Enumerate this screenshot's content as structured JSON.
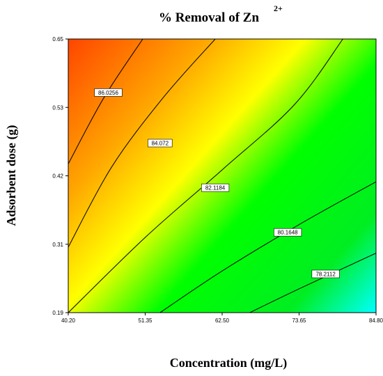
{
  "chart_data": {
    "type": "heatmap",
    "subtype": "contour",
    "title": "% Removal of Zn",
    "title_superscript": "2+",
    "xlabel": "Concentration (mg/L)",
    "ylabel": "Adsorbent dose (g)",
    "xlim": [
      40.2,
      84.8
    ],
    "ylim": [
      0.19,
      0.65
    ],
    "x_ticks": [
      "40.20",
      "51.35",
      "62.50",
      "73.65",
      "84.80"
    ],
    "y_ticks": [
      "0.19",
      "0.31",
      "0.42",
      "0.53",
      "0.65"
    ],
    "z_range": [
      76.2,
      88.1
    ],
    "colormap": [
      "#00ffff",
      "#00ff00",
      "#ffff00",
      "#ffa500",
      "#ff4500"
    ],
    "contours": [
      {
        "level": 86.0256,
        "label": "86.0256",
        "points": [
          [
            40.2,
            0.44
          ],
          [
            45.3,
            0.55
          ],
          [
            51.0,
            0.65
          ]
        ]
      },
      {
        "level": 84.072,
        "label": "84.072",
        "points": [
          [
            40.2,
            0.3
          ],
          [
            46.5,
            0.435
          ],
          [
            54.0,
            0.552
          ],
          [
            61.5,
            0.65
          ]
        ]
      },
      {
        "level": 82.1184,
        "label": "82.1184",
        "points": [
          [
            40.2,
            0.19
          ],
          [
            51.5,
            0.318
          ],
          [
            62.5,
            0.43
          ],
          [
            73.0,
            0.54
          ],
          [
            80.0,
            0.65
          ]
        ]
      },
      {
        "level": 80.1648,
        "label": "80.1648",
        "points": [
          [
            53.5,
            0.19
          ],
          [
            62.5,
            0.26
          ],
          [
            73.65,
            0.338
          ],
          [
            84.8,
            0.41
          ]
        ]
      },
      {
        "level": 78.2112,
        "label": "78.2112",
        "points": [
          [
            66.5,
            0.19
          ],
          [
            73.65,
            0.23
          ],
          [
            84.8,
            0.29
          ]
        ]
      }
    ],
    "contour_labels": [
      {
        "text": "86.0256",
        "x": 46.0,
        "y": 0.56
      },
      {
        "text": "84.072",
        "x": 53.5,
        "y": 0.475
      },
      {
        "text": "82.1184",
        "x": 61.5,
        "y": 0.4
      },
      {
        "text": "80.1648",
        "x": 72.0,
        "y": 0.325
      },
      {
        "text": "78.2112",
        "x": 77.5,
        "y": 0.255
      }
    ],
    "grid": false,
    "legend": "none"
  }
}
